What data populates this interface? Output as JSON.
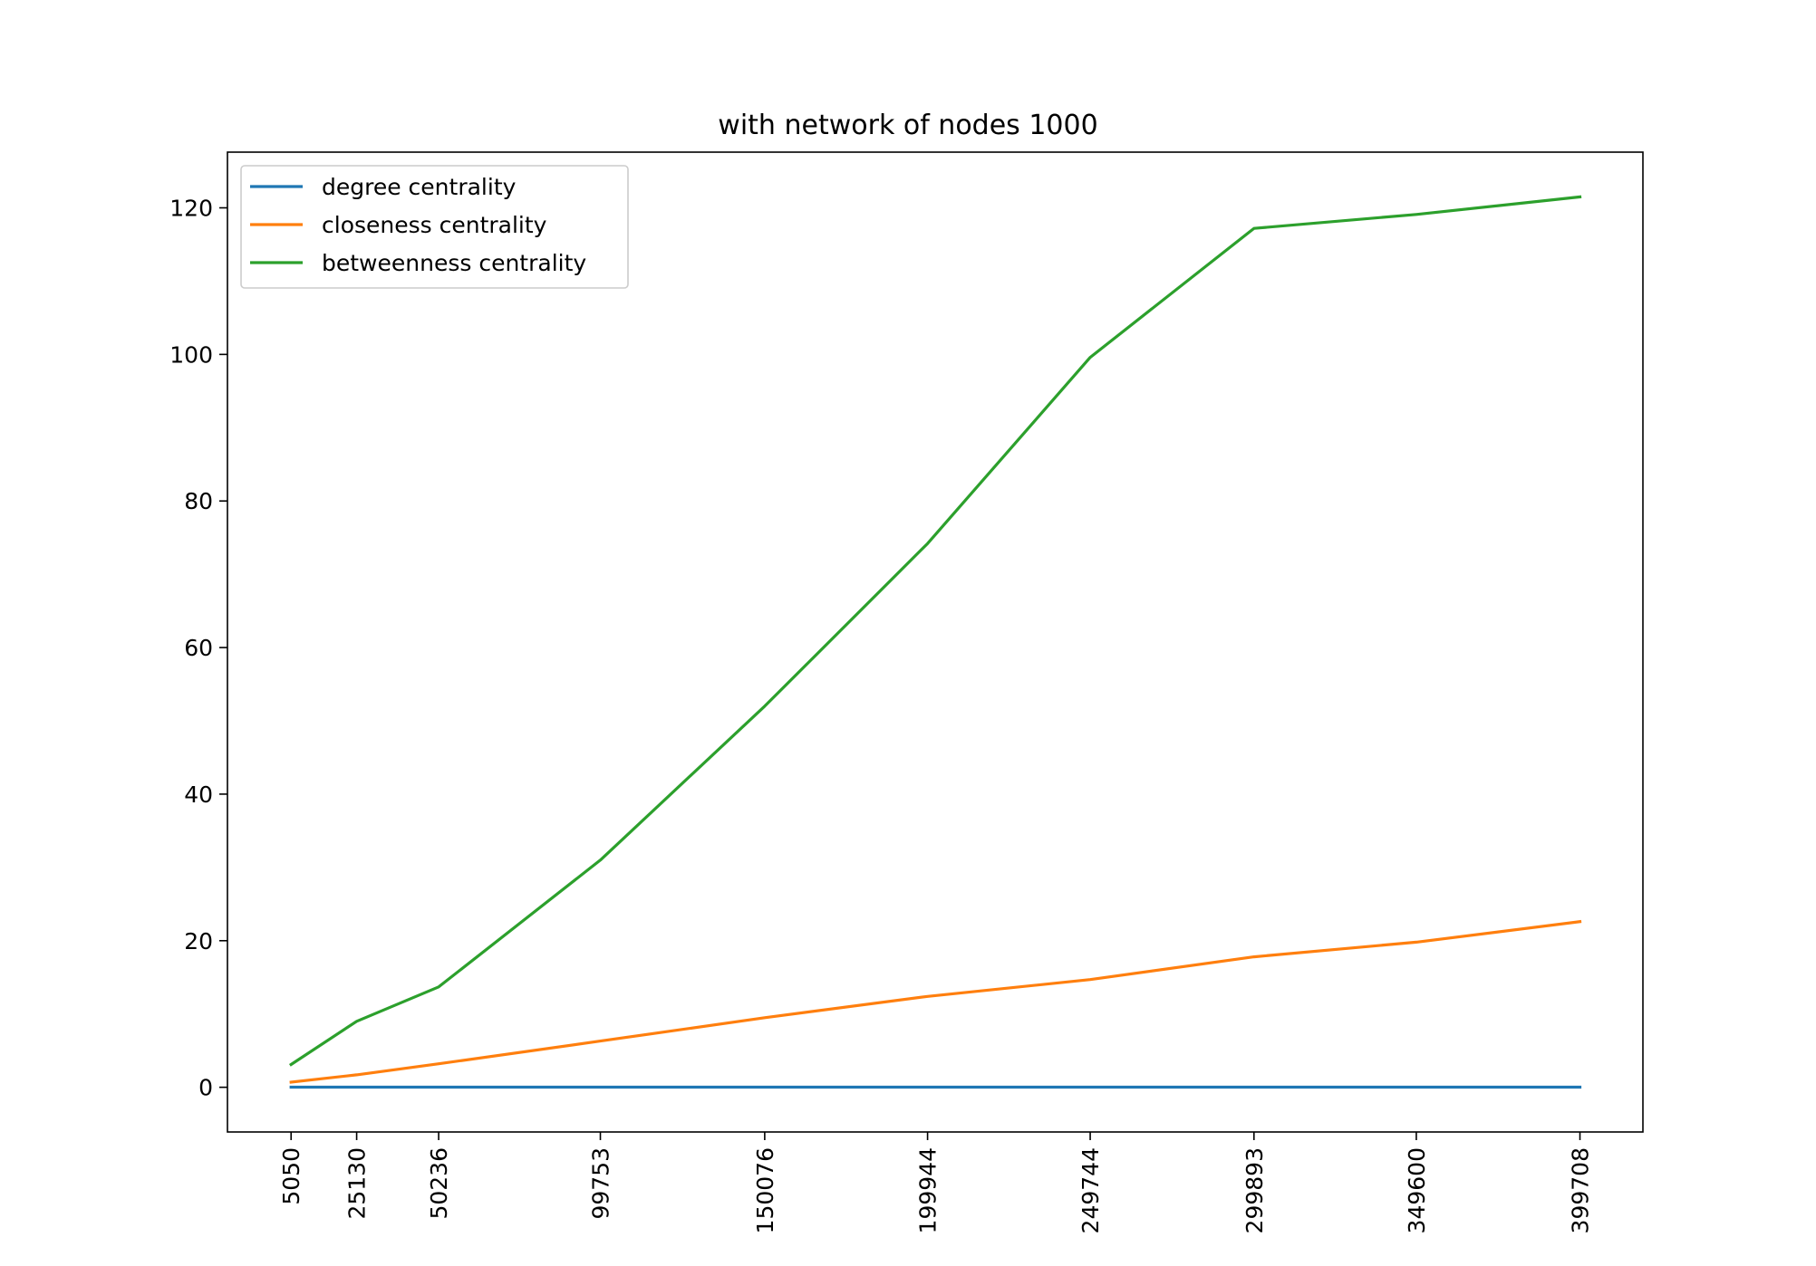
{
  "chart_data": {
    "type": "line",
    "title": "with network of nodes 1000",
    "xlabel": "",
    "ylabel": "",
    "x": [
      5050,
      25130,
      50236,
      99753,
      150076,
      199944,
      249744,
      299893,
      349600,
      399708
    ],
    "x_tick_labels": [
      "5050",
      "25130",
      "50236",
      "99753",
      "150076",
      "199944",
      "249744",
      "299893",
      "349600",
      "399708"
    ],
    "y_ticks": [
      0,
      20,
      40,
      60,
      80,
      100,
      120
    ],
    "y_tick_labels": [
      "0",
      "20",
      "40",
      "60",
      "80",
      "100",
      "120"
    ],
    "xlim": [
      -14433,
      418990
    ],
    "ylim": [
      -6.1,
      127.6
    ],
    "grid": false,
    "legend_position": "upper-left",
    "series": [
      {
        "name": "degree centrality",
        "color": "#1f77b4",
        "values": [
          0.02,
          0.02,
          0.02,
          0.02,
          0.02,
          0.02,
          0.02,
          0.02,
          0.02,
          0.02
        ]
      },
      {
        "name": "closeness centrality",
        "color": "#ff7f0e",
        "values": [
          0.7,
          1.7,
          3.2,
          6.3,
          9.5,
          12.4,
          14.7,
          17.8,
          19.8,
          22.6
        ]
      },
      {
        "name": "betweenness centrality",
        "color": "#2ca02c",
        "values": [
          3.1,
          9.0,
          13.7,
          31.0,
          52.0,
          74.2,
          99.6,
          117.2,
          119.1,
          121.5
        ]
      }
    ]
  }
}
